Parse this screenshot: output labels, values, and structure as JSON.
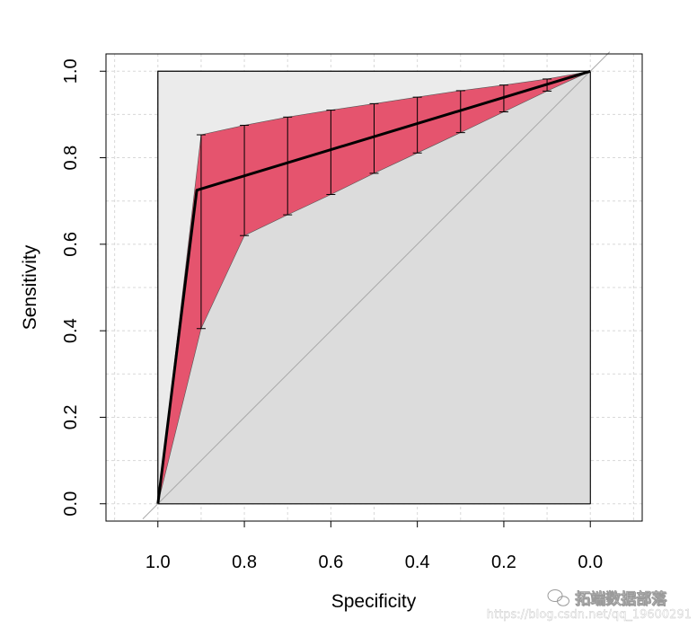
{
  "chart_data": {
    "type": "line",
    "title": "",
    "xlabel": "Specificity",
    "ylabel": "Sensitivity",
    "x_reversed": true,
    "xlim": [
      1.12,
      -0.12
    ],
    "ylim": [
      -0.04,
      1.04
    ],
    "x_ticks": [
      "1.0",
      "0.8",
      "0.6",
      "0.4",
      "0.2",
      "0.0"
    ],
    "y_ticks": [
      "0.0",
      "0.2",
      "0.4",
      "0.6",
      "0.8",
      "1.0"
    ],
    "grid": true,
    "series": [
      {
        "role": "roc-curve",
        "x": [
          1.0,
          0.91,
          0.0
        ],
        "y": [
          0.0,
          0.725,
          1.0
        ]
      }
    ],
    "confidence_band": {
      "upper": {
        "x": [
          1.0,
          0.9,
          0.8,
          0.7,
          0.6,
          0.5,
          0.4,
          0.3,
          0.2,
          0.1,
          0.0
        ],
        "y": [
          0.0,
          0.853,
          0.875,
          0.894,
          0.91,
          0.925,
          0.94,
          0.955,
          0.968,
          0.982,
          1.0
        ]
      },
      "lower": {
        "x": [
          1.0,
          0.9,
          0.8,
          0.7,
          0.6,
          0.5,
          0.4,
          0.3,
          0.2,
          0.1,
          0.0
        ],
        "y": [
          0.0,
          0.405,
          0.62,
          0.668,
          0.715,
          0.764,
          0.811,
          0.858,
          0.906,
          0.954,
          1.0
        ]
      }
    },
    "error_bars": {
      "x": [
        0.9,
        0.8,
        0.7,
        0.6,
        0.5,
        0.4,
        0.3,
        0.2,
        0.1
      ],
      "low": [
        0.405,
        0.62,
        0.668,
        0.715,
        0.764,
        0.811,
        0.858,
        0.906,
        0.954
      ],
      "high": [
        0.853,
        0.875,
        0.894,
        0.91,
        0.925,
        0.94,
        0.955,
        0.968,
        0.982
      ]
    },
    "colors": {
      "band": "#e5546e",
      "upper_region": "#ebebeb",
      "lower_region": "#dcdcdc",
      "curve": "#000000",
      "diagonal": "#aaaaaa",
      "grid": "#d8d8d8"
    }
  },
  "watermark": {
    "brand": "拓端数据部落",
    "url": "https://blog.csdn.net/qq_19600291"
  }
}
